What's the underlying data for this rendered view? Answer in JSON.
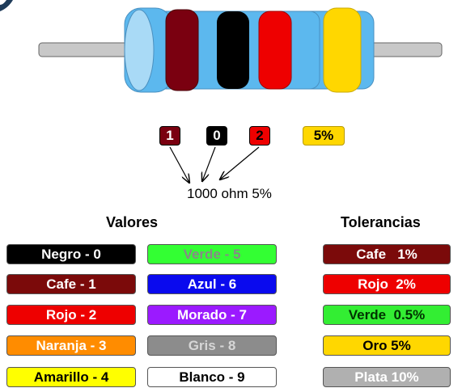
{
  "colors": {
    "body_blue": "#5cb8ee",
    "end_cap_light": "#a9daf6",
    "lead_gray": "#c8c8c8",
    "band_1": "#7a0010",
    "band_2": "#000000",
    "band_3": "#ee0000",
    "band_tolerance": "#ffd700"
  },
  "code": {
    "digit_1": "1",
    "digit_2": "0",
    "multiplier": "2",
    "tolerance": "5%"
  },
  "result_text": "1000 ohm 5%",
  "headings": {
    "values": "Valores",
    "tolerances": "Tolerancias"
  },
  "values_col1": [
    {
      "label": "Negro - 0",
      "bg": "#000000",
      "fg": "#ffffff"
    },
    {
      "label": "Cafe - 1",
      "bg": "#7b0a0a",
      "fg": "#ffffff"
    },
    {
      "label": "Rojo - 2",
      "bg": "#ee0000",
      "fg": "#ffffff"
    },
    {
      "label": "Naranja - 3",
      "bg": "#ff8c00",
      "fg": "#ffffff"
    },
    {
      "label": "Amarillo - 4",
      "bg": "#ffff00",
      "fg": "#000000"
    }
  ],
  "values_col2": [
    {
      "label": "Verde - 5",
      "bg": "#33ff33",
      "fg": "#888888"
    },
    {
      "label": "Azul - 6",
      "bg": "#0a0aee",
      "fg": "#ffffff"
    },
    {
      "label": "Morado - 7",
      "bg": "#9b1aff",
      "fg": "#ffffff"
    },
    {
      "label": "Gris - 8",
      "bg": "#8c8c8c",
      "fg": "#d6d6d6"
    },
    {
      "label": "Blanco - 9",
      "bg": "#ffffff",
      "fg": "#000000"
    }
  ],
  "tolerances": [
    {
      "label": "Cafe   1%",
      "bg": "#7b0a0a",
      "fg": "#ffffff"
    },
    {
      "label": "Rojo  2%",
      "bg": "#ee0000",
      "fg": "#ffffff"
    },
    {
      "label": "Verde  0.5%",
      "bg": "#33ee33",
      "fg": "#003300"
    },
    {
      "label": "Oro 5%",
      "bg": "#ffd700",
      "fg": "#000000"
    },
    {
      "label": "Plata 10%",
      "bg": "#b0b0b0",
      "fg": "#ffffff"
    }
  ]
}
